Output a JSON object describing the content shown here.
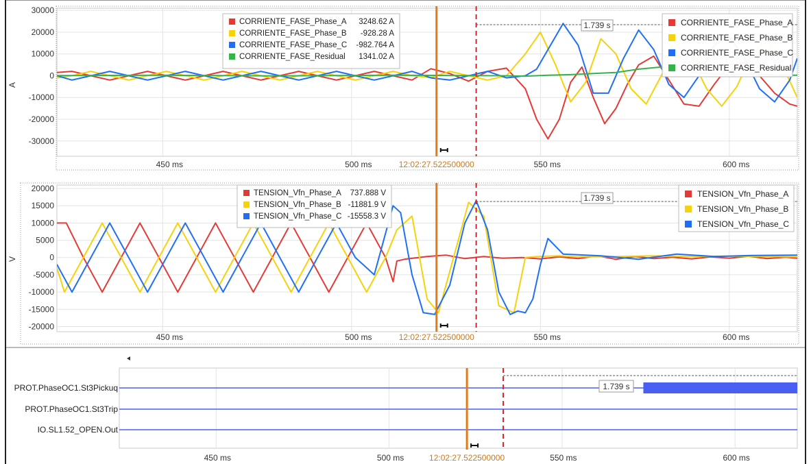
{
  "chart_data": [
    {
      "type": "line",
      "ylabel": "A",
      "xlim_ms": [
        422,
        618
      ],
      "ylim": [
        -37000,
        31000
      ],
      "yticks": [
        30000,
        20000,
        10000,
        0,
        -10000,
        -20000,
        -30000
      ],
      "xticks_ms": [
        450,
        500,
        550,
        600
      ],
      "x_tick_labels": [
        "450 ms",
        "500 ms",
        "550 ms",
        "600 ms"
      ],
      "cursor_label": "12:02:27.522500000",
      "cursor_x_ms": 522.5,
      "marker_x_ms": 533.0,
      "delta_label": "1.739 s",
      "grid": true,
      "legend_placement": "top-right",
      "cursor_readout": [
        {
          "name": "CORRIENTE_FASE_Phase_A",
          "value": "3248.62 A",
          "color": "#e53935"
        },
        {
          "name": "CORRIENTE_FASE_Phase_B",
          "value": "-928.28 A",
          "color": "#f5d20a"
        },
        {
          "name": "CORRIENTE_FASE_Phase_C",
          "value": "-982.764 A",
          "color": "#1e6ff5"
        },
        {
          "name": "CORRIENTE_FASE_Residual",
          "value": "1341.02 A",
          "color": "#34b34a"
        }
      ],
      "series": [
        {
          "name": "CORRIENTE_FASE_Phase_A",
          "color": "#e53935",
          "x": [
            422,
            426,
            431,
            436,
            441,
            446,
            451,
            456,
            461,
            466,
            471,
            476,
            481,
            486,
            491,
            496,
            501,
            506,
            511,
            516,
            521,
            526,
            531,
            536,
            541,
            546,
            549,
            552,
            555,
            558,
            561,
            564,
            567,
            570,
            573,
            576,
            580,
            584,
            588,
            592,
            596,
            600,
            604,
            608,
            612,
            616,
            618
          ],
          "y": [
            1500,
            2000,
            0,
            -2000,
            0,
            2000,
            0,
            -2000,
            0,
            2000,
            0,
            -2000,
            0,
            2000,
            0,
            -2000,
            0,
            2000,
            0,
            -2000,
            3200,
            1000,
            -2500,
            2000,
            3500,
            -6000,
            -20000,
            -29000,
            -20000,
            -3000,
            4000,
            -10000,
            -22000,
            -15000,
            -4000,
            5000,
            9000,
            -2000,
            -13000,
            -14000,
            -4000,
            5000,
            6000,
            0,
            -8000,
            -13000,
            -14000
          ]
        },
        {
          "name": "CORRIENTE_FASE_Phase_B",
          "color": "#f5d20a",
          "x": [
            422,
            426,
            431,
            436,
            441,
            446,
            451,
            456,
            461,
            466,
            471,
            476,
            481,
            486,
            491,
            496,
            501,
            506,
            511,
            516,
            521,
            526,
            531,
            536,
            541,
            546,
            550,
            554,
            558,
            562,
            566,
            570,
            574,
            578,
            582,
            586,
            590,
            594,
            598,
            602,
            606,
            610,
            614,
            618
          ],
          "y": [
            -1000,
            0,
            2000,
            0,
            -2000,
            0,
            2000,
            0,
            -2000,
            0,
            2000,
            0,
            -2000,
            0,
            2000,
            0,
            -2000,
            0,
            2000,
            0,
            -900,
            2000,
            0,
            -2000,
            0,
            10000,
            20000,
            5000,
            -12000,
            -3000,
            17000,
            10000,
            -6000,
            -13000,
            0,
            14000,
            8000,
            -6000,
            -14000,
            -5000,
            10000,
            16000,
            5000,
            -10000
          ]
        },
        {
          "name": "CORRIENTE_FASE_Phase_C",
          "color": "#1e6ff5",
          "x": [
            422,
            426,
            431,
            436,
            441,
            446,
            451,
            456,
            461,
            466,
            471,
            476,
            481,
            486,
            491,
            496,
            501,
            506,
            511,
            516,
            521,
            526,
            531,
            536,
            541,
            546,
            549,
            552,
            556,
            560,
            564,
            568,
            572,
            576,
            580,
            584,
            588,
            592,
            596,
            600,
            604,
            608,
            612,
            616,
            618
          ],
          "y": [
            0,
            -2000,
            0,
            2000,
            0,
            -2000,
            0,
            2000,
            0,
            -2000,
            0,
            2000,
            0,
            -2000,
            0,
            2000,
            0,
            -2000,
            0,
            2000,
            -1000,
            -2000,
            0,
            2000,
            -1000,
            0,
            3000,
            12000,
            24000,
            14000,
            -8000,
            -8000,
            8000,
            21000,
            12000,
            -4000,
            -10000,
            0,
            14000,
            18000,
            8000,
            -6000,
            -12000,
            -2000,
            8000
          ]
        },
        {
          "name": "CORRIENTE_FASE_Residual",
          "color": "#34b34a",
          "x": [
            422,
            450,
            480,
            510,
            530,
            540,
            546,
            552,
            558,
            564,
            570,
            576,
            582,
            588,
            594,
            600,
            606,
            612,
            618
          ],
          "y": [
            100,
            200,
            -100,
            200,
            100,
            0,
            -200,
            200,
            500,
            1000,
            1500,
            3000,
            4000,
            2000,
            1000,
            500,
            800,
            300,
            200
          ]
        }
      ]
    },
    {
      "type": "line",
      "ylabel": "V",
      "xlim_ms": [
        422,
        618
      ],
      "ylim": [
        -21500,
        21000
      ],
      "yticks": [
        20000,
        15000,
        10000,
        5000,
        0,
        -5000,
        -10000,
        -15000,
        -20000
      ],
      "xticks_ms": [
        450,
        500,
        550,
        600
      ],
      "x_tick_labels": [
        "450 ms",
        "500 ms",
        "550 ms",
        "600 ms"
      ],
      "cursor_label": "12:02:27.522500000",
      "cursor_x_ms": 522.5,
      "marker_x_ms": 533.0,
      "delta_label": "1.739 s",
      "grid": true,
      "legend_placement": "top-right",
      "cursor_readout": [
        {
          "name": "TENSION_Vfn_Phase_A",
          "value": "737.888 V",
          "color": "#e53935"
        },
        {
          "name": "TENSION_Vfn_Phase_B",
          "value": "-11881.9 V",
          "color": "#f5d20a"
        },
        {
          "name": "TENSION_Vfn_Phase_C",
          "value": "-15558.3 V",
          "color": "#1e6ff5"
        }
      ],
      "series": [
        {
          "name": "TENSION_Vfn_Phase_A",
          "color": "#e53935",
          "x": [
            422,
            424.5,
            429,
            434,
            439,
            444,
            449,
            454,
            459,
            464,
            469,
            474,
            479,
            484,
            489,
            494,
            499,
            504,
            509,
            511,
            512,
            514,
            520,
            525,
            530,
            535,
            540,
            545,
            550,
            555,
            560,
            565,
            570,
            575,
            580,
            585,
            590,
            595,
            600,
            605,
            610,
            615,
            618
          ],
          "y": [
            10000,
            10000,
            0,
            -10000,
            0,
            10000,
            0,
            -10000,
            0,
            10000,
            0,
            -10000,
            0,
            10000,
            0,
            -10000,
            0,
            10000,
            0,
            -7000,
            -1000,
            -500,
            300,
            700,
            -300,
            300,
            -200,
            0,
            -400,
            200,
            -300,
            500,
            -500,
            300,
            -300,
            100,
            -400,
            200,
            -200,
            400,
            -300,
            100,
            -200
          ]
        },
        {
          "name": "TENSION_Vfn_Phase_B",
          "color": "#f5d20a",
          "x": [
            422,
            424,
            429,
            434,
            439,
            444,
            449,
            454,
            459,
            464,
            469,
            474,
            479,
            484,
            489,
            494,
            499,
            504,
            509,
            512,
            516,
            520,
            523,
            527,
            531,
            535,
            539,
            543,
            546,
            549,
            555,
            560,
            570,
            580,
            590,
            600,
            610,
            618
          ],
          "y": [
            -3000,
            -10000,
            0,
            10000,
            0,
            -10000,
            0,
            10000,
            0,
            -10000,
            0,
            10000,
            0,
            -10000,
            0,
            10000,
            0,
            -10000,
            0,
            8000,
            12000,
            -12000,
            -16000,
            0,
            16000,
            12000,
            -14000,
            -16000,
            0,
            300,
            500,
            200,
            300,
            500,
            300,
            400,
            300,
            200
          ]
        },
        {
          "name": "TENSION_Vfn_Phase_C",
          "color": "#1e6ff5",
          "x": [
            422,
            426,
            431,
            436,
            441,
            446,
            451,
            456,
            461,
            466,
            471,
            476,
            481,
            486,
            491,
            496,
            501,
            506,
            511,
            513,
            516,
            519,
            522,
            526,
            530,
            533,
            536,
            539,
            542,
            544,
            546,
            548,
            550,
            552,
            556,
            566,
            576,
            586,
            596,
            606,
            618
          ],
          "y": [
            -2000,
            -10000,
            0,
            10000,
            0,
            -10000,
            0,
            10000,
            0,
            -10000,
            0,
            10000,
            0,
            -10000,
            0,
            10000,
            0,
            -5000,
            15000,
            13000,
            -5000,
            -16000,
            -16500,
            -8000,
            10000,
            16500,
            8000,
            -10000,
            -16500,
            -15500,
            -16000,
            -12000,
            -2000,
            5500,
            1000,
            500,
            -500,
            1000,
            300,
            600,
            700
          ]
        }
      ]
    },
    {
      "type": "digital",
      "xlim_ms": [
        422,
        618
      ],
      "xticks_ms": [
        450,
        500,
        550,
        600
      ],
      "x_tick_labels": [
        "450 ms",
        "500 ms",
        "550 ms",
        "600 ms"
      ],
      "cursor_label": "12:02:27.522500000",
      "cursor_x_ms": 522.5,
      "marker_x_ms": 533.0,
      "delta_label": "1.739 s",
      "grid": true,
      "channels": [
        {
          "name": "PROT.PhaseOC1.St3Pickup",
          "display_label": "PROT.PhaseOC1.St3Pickuq",
          "color": "#4a5ff2",
          "active_from_ms": 573.5
        },
        {
          "name": "PROT.PhaseOC1.St3Trip",
          "color": "#4a5ff2",
          "active_from_ms": null
        },
        {
          "name": "IO.SL1.52_OPEN.Out",
          "color": "#4a5ff2",
          "active_from_ms": null
        }
      ]
    }
  ]
}
